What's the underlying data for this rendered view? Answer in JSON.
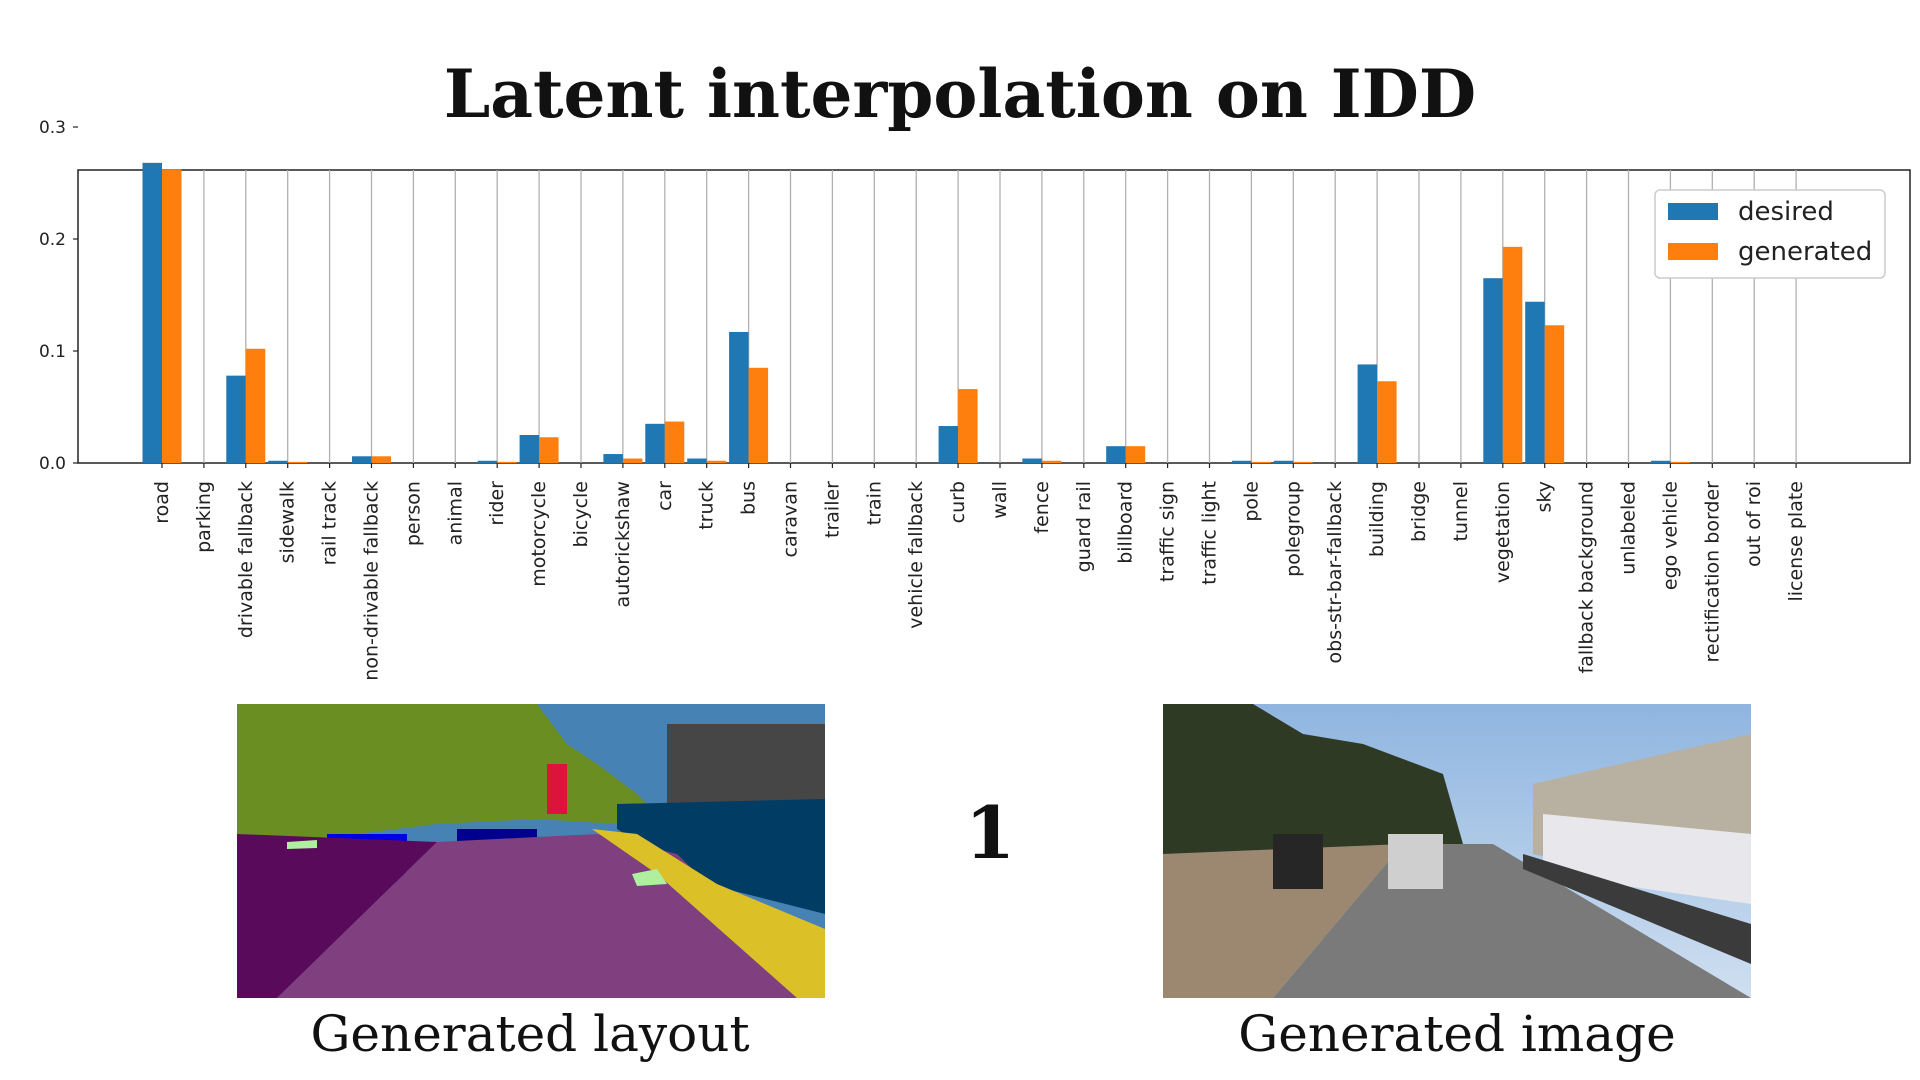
{
  "title": "Latent interpolation on IDD",
  "chart_data": {
    "type": "bar",
    "categories": [
      "road",
      "parking",
      "drivable fallback",
      "sidewalk",
      "rail track",
      "non-drivable fallback",
      "person",
      "animal",
      "rider",
      "motorcycle",
      "bicycle",
      "autorickshaw",
      "car",
      "truck",
      "bus",
      "caravan",
      "trailer",
      "train",
      "vehicle fallback",
      "curb",
      "wall",
      "fence",
      "guard rail",
      "billboard",
      "traffic sign",
      "traffic light",
      "pole",
      "polegroup",
      "obs-str-bar-fallback",
      "building",
      "bridge",
      "tunnel",
      "vegetation",
      "sky",
      "fallback background",
      "unlabeled",
      "ego vehicle",
      "rectification border",
      "out of roi",
      "license plate"
    ],
    "series": [
      {
        "name": "desired",
        "color": "#1f77b4",
        "values": [
          0.268,
          0,
          0.078,
          0.002,
          0,
          0.006,
          0,
          0,
          0.002,
          0.025,
          0,
          0.008,
          0.035,
          0.004,
          0.117,
          0,
          0,
          0,
          0,
          0.033,
          0,
          0.004,
          0,
          0.015,
          0,
          0,
          0.002,
          0.002,
          0,
          0.088,
          0,
          0,
          0.165,
          0.144,
          0,
          0,
          0.002,
          0,
          0,
          0
        ]
      },
      {
        "name": "generated",
        "color": "#ff7f0e",
        "values": [
          0.262,
          0,
          0.102,
          0.001,
          0,
          0.006,
          0,
          0,
          0.001,
          0.023,
          0,
          0.004,
          0.037,
          0.002,
          0.085,
          0,
          0,
          0,
          0,
          0.066,
          0,
          0.002,
          0,
          0.015,
          0,
          0,
          0.001,
          0.001,
          0,
          0.073,
          0,
          0,
          0.193,
          0.123,
          0,
          0,
          0.001,
          0,
          0,
          0
        ]
      }
    ],
    "yticks": [
      "0.0",
      "0.1",
      "0.2",
      "0.3"
    ],
    "ylim": [
      0,
      0.39
    ],
    "grid": "vertical",
    "legend": "top-right"
  },
  "step_label": "1",
  "captions": {
    "layout": "Generated layout",
    "image": "Generated image"
  },
  "layout_colors": {
    "sky": "#4682b4",
    "vegetation": "#6b8e23",
    "building": "#464646",
    "road": "#80407f",
    "drivable": "#5a0a5a",
    "curb": "#dcc028",
    "bus": "#003c64",
    "car": "#00008e",
    "motorcycle": "#0000e6",
    "person": "#dc143c",
    "billboard": "#aef0a0"
  }
}
